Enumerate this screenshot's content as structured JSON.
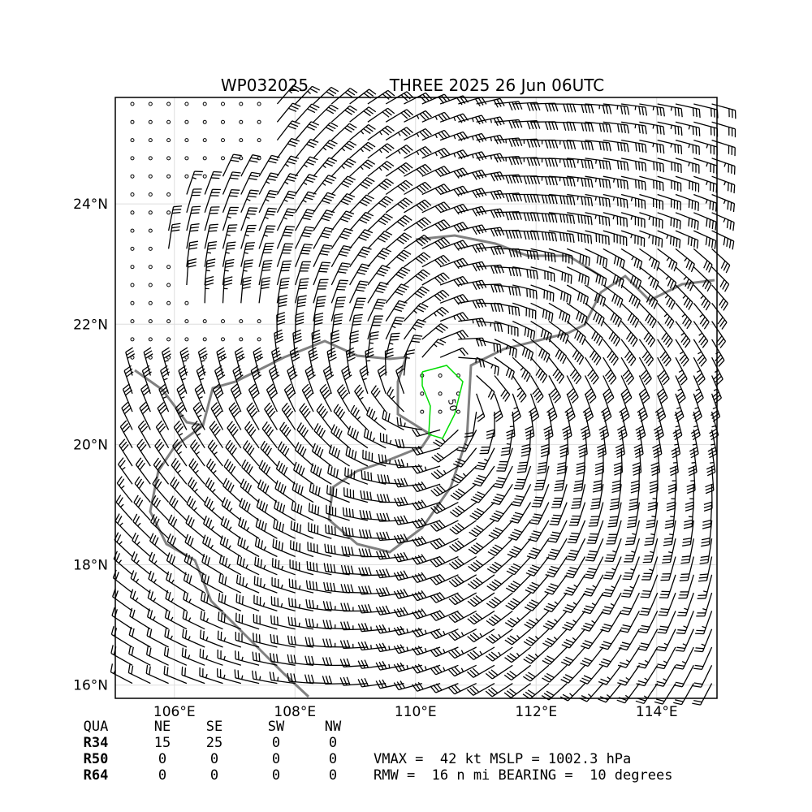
{
  "header": {
    "storm_id": "WP032025",
    "title": "THREE 2025 26 Jun 06UTC"
  },
  "map": {
    "xlim": [
      105.02,
      115.0
    ],
    "ylim": [
      15.78,
      25.77
    ],
    "xticks": [
      {
        "value": 106,
        "label": "106°E"
      },
      {
        "value": 108,
        "label": "108°E"
      },
      {
        "value": 110,
        "label": "110°E"
      },
      {
        "value": 112,
        "label": "112°E"
      },
      {
        "value": 114,
        "label": "114°E"
      }
    ],
    "yticks": [
      {
        "value": 16,
        "label": "16°N"
      },
      {
        "value": 18,
        "label": "18°N"
      },
      {
        "value": 20,
        "label": "20°N"
      },
      {
        "value": 22,
        "label": "22°N"
      },
      {
        "value": 24,
        "label": "24°N"
      }
    ],
    "contour_label": "50"
  },
  "table": {
    "header": [
      "QUA",
      "NE",
      "SE",
      "SW",
      "NW"
    ],
    "rows": [
      [
        "R34",
        "15",
        "25",
        "0",
        "0"
      ],
      [
        "R50",
        "0",
        "0",
        "0",
        "0"
      ],
      [
        "R64",
        "0",
        "0",
        "0",
        "0"
      ]
    ]
  },
  "summary": [
    "VMAX =  42 kt MSLP = 1002.3 hPa",
    "RMW =  16 n mi BEARING =  10 degrees"
  ]
}
